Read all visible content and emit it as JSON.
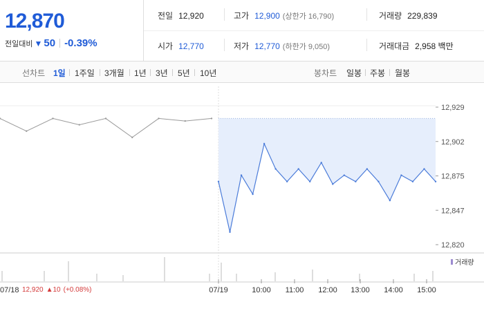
{
  "quote": {
    "price": "12,870",
    "change_label": "전일대비",
    "change_arrow": "▼",
    "change_amount": "50",
    "change_percent": "-0.39%"
  },
  "stats": {
    "prev_close": {
      "label": "전일",
      "value": "12,920"
    },
    "high": {
      "label": "고가",
      "value": "12,900",
      "sub": "(상한가 16,790)"
    },
    "volume": {
      "label": "거래량",
      "value": "229,839"
    },
    "open": {
      "label": "시가",
      "value": "12,770"
    },
    "low": {
      "label": "저가",
      "value": "12,770",
      "sub": "(하한가 9,050)"
    },
    "trade_value": {
      "label": "거래대금",
      "value": "2,958 백만"
    }
  },
  "toolbar": {
    "line_label": "선차트",
    "line_ranges": [
      "1일",
      "1주일",
      "3개월",
      "1년",
      "3년",
      "5년",
      "10년"
    ],
    "active_range": "1일",
    "candle_label": "봉차트",
    "candle_ranges": [
      "일봉",
      "주봉",
      "월봉"
    ]
  },
  "chart": {
    "y_ticks": [
      "12,929",
      "12,902",
      "12,875",
      "12,847",
      "12,820"
    ],
    "x_ticks": [
      "07/19",
      "10:00",
      "11:00",
      "12:00",
      "13:00",
      "14:00",
      "15:00"
    ],
    "prev_day": {
      "date": "07/18",
      "close": "12,920",
      "change": "▲10",
      "change_percent": "(+0.08%)"
    },
    "volume_legend": "거래량",
    "colors": {
      "line": "#4a7bd9",
      "area": "#e6eefc",
      "prev_line": "#999999",
      "volume": "#9c8bd0",
      "up": "#d43a3a"
    }
  },
  "chart_data": {
    "type": "line",
    "ylim": [
      12820,
      12929
    ],
    "series": [
      {
        "values": [
          12920,
          12910,
          12920,
          12915,
          12920,
          12905,
          12920,
          12918,
          12920
        ]
      },
      {
        "values": [
          12870,
          12830,
          12875,
          12860,
          12900,
          12880,
          12870,
          12880,
          12870,
          12885,
          12868,
          12875,
          12870,
          12880,
          12870,
          12855,
          12875,
          12870,
          12880,
          12870
        ]
      }
    ]
  }
}
